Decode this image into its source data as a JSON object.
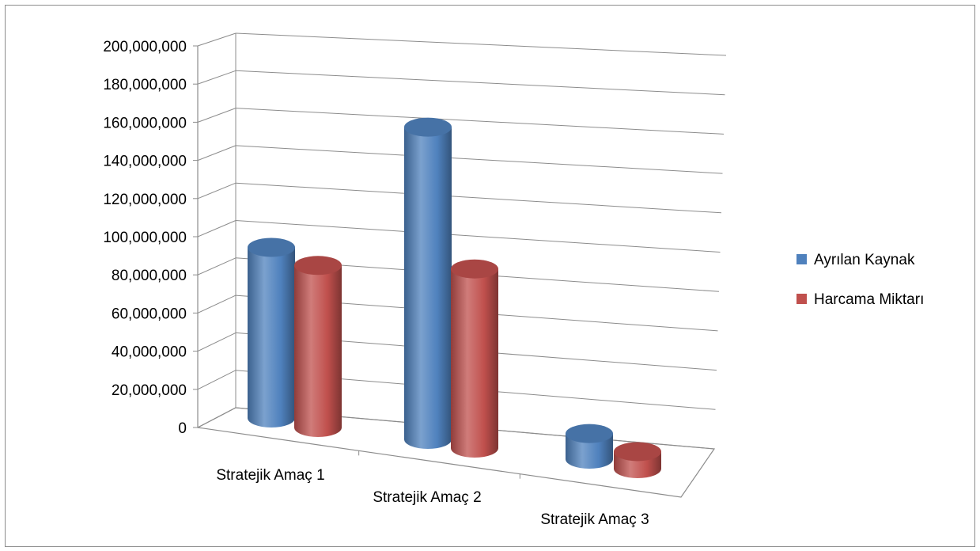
{
  "chart_data": {
    "type": "bar",
    "style": "3d-cylinder",
    "categories": [
      "Stratejik Amaç 1",
      "Stratejik Amaç 2",
      "Stratejik Amaç 3"
    ],
    "series": [
      {
        "name": "Ayrılan Kaynak",
        "color": "#4F81BD",
        "values": [
          100000000,
          183000000,
          15000000
        ]
      },
      {
        "name": "Harcama Miktarı",
        "color": "#C0504D",
        "values": [
          95000000,
          105000000,
          10000000
        ]
      }
    ],
    "y_ticks": [
      "0",
      "20,000,000",
      "40,000,000",
      "60,000,000",
      "80,000,000",
      "100,000,000",
      "120,000,000",
      "140,000,000",
      "160,000,000",
      "180,000,000",
      "200,000,000"
    ],
    "ylim": [
      0,
      200000000
    ],
    "title": "",
    "xlabel": "",
    "ylabel": "",
    "grid": true,
    "legend": "right"
  }
}
